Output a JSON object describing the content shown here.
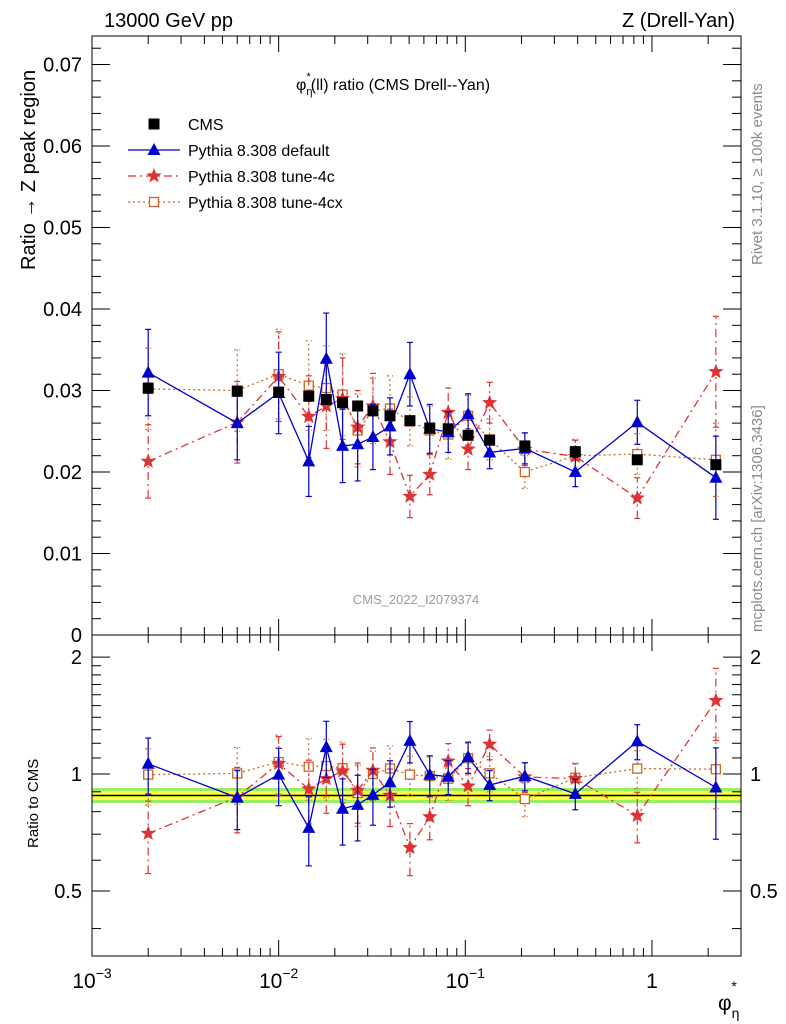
{
  "header": {
    "left": "13000 GeV pp",
    "right": "Z (Drell-Yan)"
  },
  "side": {
    "rivet": "Rivet 3.1.10, ≥ 100k events",
    "mcplots": "mcplots.cern.ch [arXiv:1306.3436]"
  },
  "colors": {
    "cms": "#000000",
    "default": "#0000cc",
    "tune4c": "#dd3333",
    "tune4cx": "#cc6622",
    "band_inner": "#ffff44",
    "band_outer": "#99ee66"
  },
  "chart_data": {
    "type": "scatter",
    "title": "φη*(ll) ratio (CMS Drell--Yan)",
    "title_main": "φ",
    "title_sub": "η",
    "title_sup": "*",
    "title_rest": "(ll) ratio (CMS Drell--Yan)",
    "analysis_tag": "CMS_2022_I2079374",
    "xlabel_main": "φ",
    "xlabel_sub": "η",
    "xlabel_sup": "*",
    "ylabel": "Ratio → Z peak region",
    "ratio_ylabel": "Ratio to CMS",
    "xscale": "log",
    "xlim": [
      0.001,
      3.0
    ],
    "ylim": [
      0,
      0.0735
    ],
    "ratio_ylim": [
      0.34,
      2.28
    ],
    "x_ticks": [
      {
        "v": 0.001,
        "label_base": "10",
        "label_exp": "−3"
      },
      {
        "v": 0.01,
        "label_base": "10",
        "label_exp": "−2"
      },
      {
        "v": 0.1,
        "label_base": "10",
        "label_exp": "−1"
      },
      {
        "v": 1,
        "label_base": "1",
        "label_exp": ""
      }
    ],
    "y_ticks": [
      {
        "v": 0,
        "label": "0"
      },
      {
        "v": 0.01,
        "label": "0.01"
      },
      {
        "v": 0.02,
        "label": "0.02"
      },
      {
        "v": 0.03,
        "label": "0.03"
      },
      {
        "v": 0.04,
        "label": "0.04"
      },
      {
        "v": 0.05,
        "label": "0.05"
      },
      {
        "v": 0.06,
        "label": "0.06"
      },
      {
        "v": 0.07,
        "label": "0.07"
      }
    ],
    "ratio_ticks": [
      {
        "v": 0.5,
        "label": "0.5"
      },
      {
        "v": 1,
        "label": "1"
      },
      {
        "v": 2,
        "label": "2"
      }
    ],
    "legend_position": "top-left",
    "x": [
      0.002,
      0.006,
      0.01,
      0.0145,
      0.018,
      0.022,
      0.0265,
      0.032,
      0.0395,
      0.0505,
      0.0645,
      0.081,
      0.1035,
      0.135,
      0.2085,
      0.3885,
      0.8345,
      2.2
    ],
    "series": [
      {
        "name": "CMS",
        "key": "cms",
        "marker": "square",
        "values": [
          0.0303,
          0.0299,
          0.0298,
          0.0293,
          0.0289,
          0.0285,
          0.0281,
          0.0275,
          0.0269,
          0.0263,
          0.0254,
          0.0253,
          0.0245,
          0.0239,
          0.0232,
          0.0225,
          0.0215,
          0.0209
        ],
        "errors": [
          0.0006,
          0.0006,
          0.0006,
          0.0006,
          0.0006,
          0.0006,
          0.0006,
          0.0005,
          0.0005,
          0.0005,
          0.0005,
          0.0005,
          0.0005,
          0.0005,
          0.0005,
          0.0005,
          0.0005,
          0.0005
        ]
      },
      {
        "name": "Pythia 8.308 default",
        "key": "default",
        "marker": "triangle",
        "values": [
          0.0322,
          0.026,
          0.0297,
          0.0213,
          0.0339,
          0.0232,
          0.0234,
          0.0243,
          0.0256,
          0.032,
          0.0253,
          0.0249,
          0.0271,
          0.0224,
          0.0229,
          0.02,
          0.0261,
          0.0193
        ],
        "errors": [
          0.0053,
          0.0045,
          0.005,
          0.0043,
          0.0056,
          0.0045,
          0.0045,
          0.004,
          0.0035,
          0.0039,
          0.003,
          0.0025,
          0.0025,
          0.002,
          0.0019,
          0.0018,
          0.0027,
          0.0051
        ]
      },
      {
        "name": "Pythia 8.308 tune-4c",
        "key": "tune4c",
        "marker": "star",
        "values": [
          0.0213,
          0.0261,
          0.0317,
          0.0268,
          0.0281,
          0.029,
          0.0255,
          0.0281,
          0.0237,
          0.017,
          0.0197,
          0.0273,
          0.0228,
          0.0285,
          0.0228,
          0.0219,
          0.0168,
          0.0323
        ],
        "errors": [
          0.0045,
          0.005,
          0.0055,
          0.005,
          0.0052,
          0.005,
          0.0045,
          0.004,
          0.004,
          0.0026,
          0.0025,
          0.003,
          0.0025,
          0.0025,
          0.002,
          0.002,
          0.0025,
          0.0068
        ]
      },
      {
        "name": "Pythia 8.308 tune-4cx",
        "key": "tune4cx",
        "marker": "open-square",
        "values": [
          0.0302,
          0.03,
          0.032,
          0.0306,
          0.0303,
          0.0295,
          0.0251,
          0.0275,
          0.0278,
          0.0262,
          0.0251,
          0.0246,
          0.0269,
          0.024,
          0.02,
          0.022,
          0.0222,
          0.0215
        ],
        "errors": [
          0.005,
          0.005,
          0.0055,
          0.0055,
          0.0052,
          0.005,
          0.0045,
          0.004,
          0.004,
          0.003,
          0.003,
          0.003,
          0.0025,
          0.0025,
          0.002,
          0.002,
          0.0025,
          0.0045
        ]
      }
    ]
  }
}
